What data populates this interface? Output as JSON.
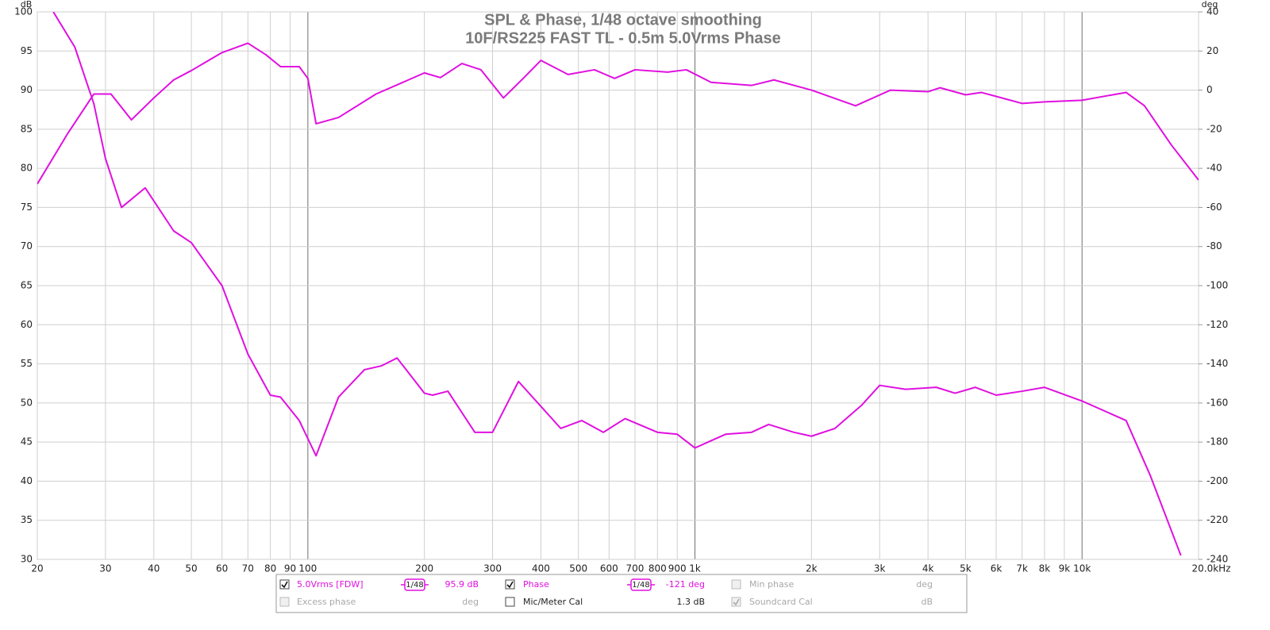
{
  "chart_data": {
    "type": "line",
    "title": "SPL & Phase, 1/48 octave smoothing",
    "subtitle": "10F/RS225 FAST TL - 0.5m 5.0Vrms Phase",
    "y_label": "dB",
    "y2_label": "deg",
    "xscale": "log",
    "grid": true,
    "xlim": [
      20,
      20000
    ],
    "xticks": [
      20,
      30,
      40,
      50,
      60,
      70,
      80,
      90,
      100,
      200,
      300,
      400,
      500,
      600,
      700,
      800,
      900,
      {
        "value": 1000,
        "label": "1k"
      },
      {
        "value": 2000,
        "label": "2k"
      },
      {
        "value": 3000,
        "label": "3k"
      },
      {
        "value": 4000,
        "label": "4k"
      },
      {
        "value": 5000,
        "label": "5k"
      },
      {
        "value": 6000,
        "label": "6k"
      },
      {
        "value": 7000,
        "label": "7k"
      },
      {
        "value": 8000,
        "label": "8k"
      },
      {
        "value": 9000,
        "label": "9k"
      },
      {
        "value": 10000,
        "label": "10k"
      },
      {
        "value": 20000,
        "label": "20.0kHz"
      }
    ],
    "ylim": [
      30,
      100
    ],
    "yticks": [
      30,
      35,
      40,
      45,
      50,
      55,
      60,
      65,
      70,
      75,
      80,
      85,
      90,
      95,
      100
    ],
    "y2lim": [
      -240,
      40
    ],
    "y2ticks": [
      -240,
      -220,
      -200,
      -180,
      -160,
      -140,
      -120,
      -100,
      -80,
      -60,
      -40,
      -20,
      0,
      20,
      40
    ],
    "series": [
      {
        "name": "5.0Vrms [FDW]",
        "color": "#e010e0",
        "axis": "y",
        "x": [
          20,
          24,
          28,
          31,
          35,
          40,
          45,
          50,
          60,
          70,
          78,
          85,
          95,
          100,
          105,
          120,
          150,
          200,
          220,
          250,
          280,
          320,
          360,
          400,
          470,
          550,
          620,
          700,
          850,
          950,
          1100,
          1400,
          1600,
          2000,
          2600,
          3200,
          4000,
          4300,
          5000,
          5500,
          7000,
          8000,
          10000,
          12000,
          13000,
          14500,
          17000,
          20000
        ],
        "values": [
          78,
          84.5,
          89.5,
          89.5,
          86.2,
          89,
          91.3,
          92.5,
          94.8,
          96,
          94.5,
          93,
          93,
          91.5,
          85.7,
          86.5,
          89.5,
          92.2,
          91.6,
          93.4,
          92.6,
          89,
          91.5,
          93.8,
          92,
          92.6,
          91.5,
          92.6,
          92.3,
          92.6,
          91,
          90.6,
          91.3,
          90,
          88,
          90,
          89.8,
          90.3,
          89.4,
          89.7,
          88.3,
          88.5,
          88.7,
          89.4,
          89.7,
          88,
          83,
          78.5
        ]
      },
      {
        "name": "Phase",
        "color": "#e010e0",
        "axis": "y2",
        "x": [
          22,
          25,
          28,
          30,
          33,
          38,
          45,
          50,
          60,
          70,
          80,
          85,
          95,
          105,
          120,
          140,
          155,
          170,
          200,
          210,
          230,
          270,
          300,
          350,
          450,
          510,
          580,
          660,
          800,
          900,
          1000,
          1200,
          1400,
          1550,
          1800,
          2000,
          2300,
          2700,
          3000,
          3500,
          4200,
          4700,
          5300,
          6000,
          7000,
          8000,
          10000,
          13000,
          15000,
          18000
        ],
        "values": [
          40,
          22,
          -7,
          -35,
          -60,
          -50,
          -72,
          -78,
          -100,
          -135,
          -156,
          -157,
          -169,
          -187,
          -157,
          -143,
          -141,
          -137,
          -155,
          -156,
          -154,
          -175,
          -175,
          -149,
          -173,
          -169,
          -175,
          -168,
          -175,
          -176,
          -183,
          -176,
          -175,
          -171,
          -175,
          -177,
          -173,
          -161,
          -151,
          -153,
          -152,
          -155,
          -152,
          -156,
          -154,
          -152,
          -159,
          -169,
          -197,
          -238
        ]
      }
    ]
  },
  "legend": {
    "items": [
      {
        "label": "5.0Vrms [FDW]",
        "checked": true,
        "enabled": true,
        "color": "#e010e0",
        "smoothing": "1/48",
        "readout": "95.9 dB"
      },
      {
        "label": "Phase",
        "checked": true,
        "enabled": true,
        "color": "#e010e0",
        "smoothing": "1/48",
        "readout": "-121 deg"
      },
      {
        "label": "Min phase",
        "checked": false,
        "enabled": false,
        "readout": "deg"
      },
      {
        "label": "Excess phase",
        "checked": false,
        "enabled": false,
        "readout": "deg"
      },
      {
        "label": "Mic/Meter Cal",
        "checked": false,
        "enabled": true,
        "readout": "1.3 dB"
      },
      {
        "label": "Soundcard Cal",
        "checked": true,
        "enabled": false,
        "readout": "dB"
      }
    ]
  }
}
